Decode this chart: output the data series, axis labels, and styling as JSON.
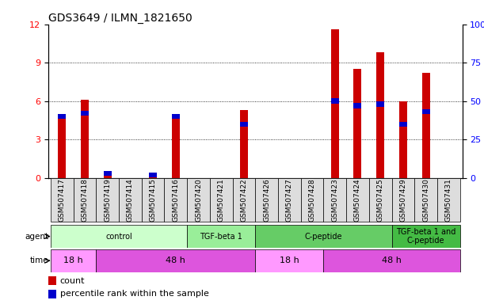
{
  "title": "GDS3649 / ILMN_1821650",
  "samples": [
    "GSM507417",
    "GSM507418",
    "GSM507419",
    "GSM507414",
    "GSM507415",
    "GSM507416",
    "GSM507420",
    "GSM507421",
    "GSM507422",
    "GSM507426",
    "GSM507427",
    "GSM507428",
    "GSM507423",
    "GSM507424",
    "GSM507425",
    "GSM507429",
    "GSM507430",
    "GSM507431"
  ],
  "count_values": [
    4.8,
    6.1,
    0.22,
    0.0,
    0.18,
    4.8,
    0.0,
    0.0,
    5.3,
    0.0,
    0.0,
    0.0,
    11.6,
    8.5,
    9.8,
    5.95,
    8.2,
    0.0
  ],
  "percentile_values_pct": [
    40,
    42,
    3,
    0,
    2,
    40,
    0,
    0,
    35,
    0,
    0,
    0,
    50,
    47,
    48,
    35,
    43,
    0
  ],
  "count_color": "#cc0000",
  "percentile_color": "#0000cc",
  "ylim_left": [
    0,
    12
  ],
  "ylim_right": [
    0,
    100
  ],
  "yticks_left": [
    0,
    3,
    6,
    9,
    12
  ],
  "yticks_right": [
    0,
    25,
    50,
    75,
    100
  ],
  "agent_groups": [
    {
      "label": "control",
      "start": 0,
      "end": 5,
      "color": "#ccffcc"
    },
    {
      "label": "TGF-beta 1",
      "start": 6,
      "end": 8,
      "color": "#99ee99"
    },
    {
      "label": "C-peptide",
      "start": 9,
      "end": 14,
      "color": "#66cc66"
    },
    {
      "label": "TGF-beta 1 and\nC-peptide",
      "start": 15,
      "end": 17,
      "color": "#44bb44"
    }
  ],
  "time_groups": [
    {
      "label": "18 h",
      "start": 0,
      "end": 1,
      "color": "#ff99ff"
    },
    {
      "label": "48 h",
      "start": 2,
      "end": 8,
      "color": "#dd55dd"
    },
    {
      "label": "18 h",
      "start": 9,
      "end": 11,
      "color": "#ff99ff"
    },
    {
      "label": "48 h",
      "start": 12,
      "end": 17,
      "color": "#dd55dd"
    }
  ],
  "legend_count_label": "count",
  "legend_percentile_label": "percentile rank within the sample",
  "title_fontsize": 10,
  "tick_label_fontsize": 6.5
}
